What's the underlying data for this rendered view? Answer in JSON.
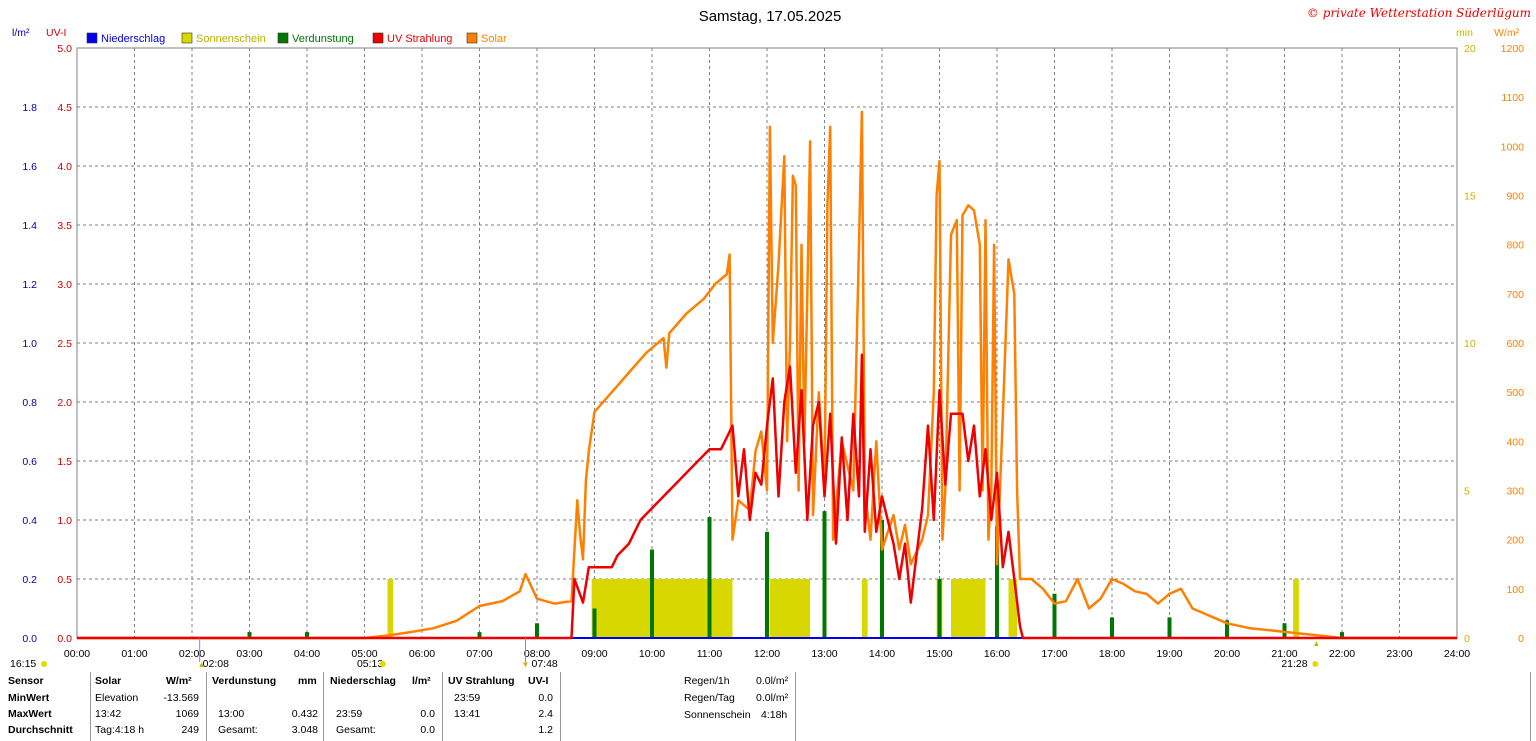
{
  "title": "Samstag, 17.05.2025",
  "copyright": "© private Wetterstation Süderlügum",
  "colors": {
    "niederschlag": "#0000ee",
    "sonnenschein": "#d8d800",
    "verdunstung": "#007700",
    "uv": "#ee0000",
    "solar": "#ff8000",
    "sonnenschein_axis": "#c8b400",
    "grid": "#808080"
  },
  "legend": [
    {
      "label": "Niederschlag",
      "color": "#0000ee"
    },
    {
      "label": "Sonnenschein",
      "color": "#d8d800"
    },
    {
      "label": "Verdunstung",
      "color": "#007700"
    },
    {
      "label": "UV Strahlung",
      "color": "#ee0000"
    },
    {
      "label": "Solar",
      "color": "#ff8000"
    }
  ],
  "chart_data": {
    "type": "line",
    "x_ticks": [
      "00:00",
      "01:00",
      "02:00",
      "03:00",
      "04:00",
      "05:00",
      "06:00",
      "07:00",
      "08:00",
      "09:00",
      "10:00",
      "11:00",
      "12:00",
      "13:00",
      "14:00",
      "15:00",
      "16:00",
      "17:00",
      "18:00",
      "19:00",
      "20:00",
      "21:00",
      "22:00",
      "23:00",
      "24:00"
    ],
    "axes": {
      "niederschlag": {
        "unit": "l/m²",
        "range": [
          0,
          2.0
        ],
        "ticks": [
          "0.0",
          "0.2",
          "0.4",
          "0.6",
          "0.8",
          "1.0",
          "1.2",
          "1.4",
          "1.6",
          "1.8"
        ]
      },
      "uv": {
        "unit": "UV-I",
        "range": [
          0,
          5.0
        ],
        "ticks": [
          "0.0",
          "0.5",
          "1.0",
          "1.5",
          "2.0",
          "2.5",
          "3.0",
          "3.5",
          "4.0",
          "4.5",
          "5.0"
        ]
      },
      "sonnenschein": {
        "unit": "min",
        "range": [
          0,
          20
        ],
        "ticks": [
          "0",
          "5",
          "10",
          "15",
          "20"
        ]
      },
      "solar": {
        "unit": "W/m²",
        "range": [
          0,
          1200
        ],
        "ticks": [
          "0",
          "100",
          "200",
          "300",
          "400",
          "500",
          "600",
          "700",
          "800",
          "900",
          "1000",
          "1100",
          "1200"
        ]
      }
    },
    "markers": {
      "left_time": "16:15",
      "moonrise": "02:08",
      "sunrise": "05:13",
      "moonset": "07:48",
      "sunset": "21:28"
    },
    "series": [
      {
        "name": "Solar",
        "unit": "W/m²",
        "points": [
          [
            0,
            0
          ],
          [
            5.0,
            0
          ],
          [
            5.4,
            5
          ],
          [
            5.8,
            12
          ],
          [
            6.2,
            20
          ],
          [
            6.6,
            35
          ],
          [
            7.0,
            65
          ],
          [
            7.4,
            75
          ],
          [
            7.7,
            95
          ],
          [
            7.8,
            130
          ],
          [
            8.0,
            80
          ],
          [
            8.3,
            70
          ],
          [
            8.6,
            75
          ],
          [
            8.7,
            280
          ],
          [
            8.75,
            210
          ],
          [
            8.8,
            160
          ],
          [
            8.85,
            320
          ],
          [
            8.9,
            380
          ],
          [
            9.0,
            460
          ],
          [
            9.3,
            500
          ],
          [
            9.6,
            540
          ],
          [
            9.9,
            580
          ],
          [
            10.2,
            610
          ],
          [
            10.25,
            550
          ],
          [
            10.3,
            620
          ],
          [
            10.6,
            660
          ],
          [
            10.9,
            690
          ],
          [
            11.1,
            720
          ],
          [
            11.3,
            740
          ],
          [
            11.35,
            780
          ],
          [
            11.4,
            200
          ],
          [
            11.5,
            280
          ],
          [
            11.7,
            260
          ],
          [
            11.8,
            380
          ],
          [
            11.9,
            420
          ],
          [
            12.0,
            300
          ],
          [
            12.05,
            1040
          ],
          [
            12.1,
            600
          ],
          [
            12.2,
            760
          ],
          [
            12.3,
            980
          ],
          [
            12.35,
            400
          ],
          [
            12.4,
            600
          ],
          [
            12.45,
            940
          ],
          [
            12.5,
            920
          ],
          [
            12.55,
            300
          ],
          [
            12.6,
            800
          ],
          [
            12.65,
            400
          ],
          [
            12.7,
            700
          ],
          [
            12.75,
            1010
          ],
          [
            12.8,
            250
          ],
          [
            12.9,
            500
          ],
          [
            13.0,
            300
          ],
          [
            13.05,
            880
          ],
          [
            13.1,
            1040
          ],
          [
            13.15,
            200
          ],
          [
            13.3,
            400
          ],
          [
            13.5,
            300
          ],
          [
            13.6,
            800
          ],
          [
            13.65,
            1070
          ],
          [
            13.7,
            300
          ],
          [
            13.8,
            200
          ],
          [
            13.9,
            400
          ],
          [
            14.0,
            180
          ],
          [
            14.2,
            250
          ],
          [
            14.3,
            180
          ],
          [
            14.4,
            230
          ],
          [
            14.5,
            150
          ],
          [
            14.7,
            200
          ],
          [
            14.8,
            250
          ],
          [
            14.9,
            500
          ],
          [
            14.95,
            900
          ],
          [
            15.0,
            970
          ],
          [
            15.05,
            200
          ],
          [
            15.1,
            300
          ],
          [
            15.2,
            820
          ],
          [
            15.3,
            850
          ],
          [
            15.35,
            300
          ],
          [
            15.4,
            860
          ],
          [
            15.5,
            880
          ],
          [
            15.6,
            870
          ],
          [
            15.7,
            800
          ],
          [
            15.75,
            300
          ],
          [
            15.8,
            850
          ],
          [
            15.85,
            200
          ],
          [
            15.9,
            300
          ],
          [
            15.95,
            800
          ],
          [
            16.0,
            150
          ],
          [
            16.1,
            450
          ],
          [
            16.2,
            770
          ],
          [
            16.3,
            700
          ],
          [
            16.35,
            300
          ],
          [
            16.4,
            120
          ],
          [
            16.6,
            120
          ],
          [
            16.8,
            100
          ],
          [
            17.0,
            70
          ],
          [
            17.2,
            75
          ],
          [
            17.4,
            120
          ],
          [
            17.6,
            60
          ],
          [
            17.8,
            80
          ],
          [
            18.0,
            120
          ],
          [
            18.2,
            110
          ],
          [
            18.4,
            95
          ],
          [
            18.6,
            90
          ],
          [
            18.8,
            70
          ],
          [
            19.0,
            90
          ],
          [
            19.2,
            100
          ],
          [
            19.4,
            60
          ],
          [
            19.6,
            50
          ],
          [
            19.8,
            40
          ],
          [
            20.0,
            30
          ],
          [
            20.4,
            20
          ],
          [
            20.8,
            15
          ],
          [
            21.2,
            10
          ],
          [
            21.6,
            5
          ],
          [
            22.0,
            0
          ],
          [
            24.0,
            0
          ]
        ]
      },
      {
        "name": "UV Strahlung",
        "unit": "UV-I",
        "points": [
          [
            0,
            0
          ],
          [
            8.6,
            0
          ],
          [
            8.65,
            0.5
          ],
          [
            8.8,
            0.3
          ],
          [
            8.9,
            0.6
          ],
          [
            9.3,
            0.6
          ],
          [
            9.4,
            0.7
          ],
          [
            9.6,
            0.8
          ],
          [
            9.7,
            0.9
          ],
          [
            9.8,
            1.0
          ],
          [
            10.0,
            1.1
          ],
          [
            10.2,
            1.2
          ],
          [
            10.4,
            1.3
          ],
          [
            10.6,
            1.4
          ],
          [
            10.8,
            1.5
          ],
          [
            11.0,
            1.6
          ],
          [
            11.2,
            1.6
          ],
          [
            11.3,
            1.7
          ],
          [
            11.4,
            1.8
          ],
          [
            11.5,
            1.2
          ],
          [
            11.6,
            1.6
          ],
          [
            11.7,
            1.0
          ],
          [
            11.8,
            1.4
          ],
          [
            11.9,
            1.3
          ],
          [
            12.0,
            1.8
          ],
          [
            12.1,
            2.2
          ],
          [
            12.2,
            1.2
          ],
          [
            12.3,
            2.0
          ],
          [
            12.4,
            2.3
          ],
          [
            12.5,
            1.4
          ],
          [
            12.6,
            2.1
          ],
          [
            12.7,
            1.0
          ],
          [
            12.8,
            1.8
          ],
          [
            12.9,
            2.0
          ],
          [
            13.0,
            1.2
          ],
          [
            13.1,
            1.9
          ],
          [
            13.2,
            0.8
          ],
          [
            13.3,
            1.7
          ],
          [
            13.4,
            1.0
          ],
          [
            13.5,
            1.9
          ],
          [
            13.6,
            1.2
          ],
          [
            13.65,
            2.4
          ],
          [
            13.7,
            0.9
          ],
          [
            13.8,
            1.6
          ],
          [
            13.9,
            0.9
          ],
          [
            14.0,
            1.2
          ],
          [
            14.2,
            0.8
          ],
          [
            14.3,
            0.5
          ],
          [
            14.4,
            0.8
          ],
          [
            14.5,
            0.3
          ],
          [
            14.6,
            0.7
          ],
          [
            14.7,
            1.1
          ],
          [
            14.8,
            1.8
          ],
          [
            14.9,
            1.0
          ],
          [
            15.0,
            2.1
          ],
          [
            15.1,
            1.3
          ],
          [
            15.2,
            1.9
          ],
          [
            15.4,
            1.9
          ],
          [
            15.5,
            1.5
          ],
          [
            15.6,
            1.8
          ],
          [
            15.7,
            1.2
          ],
          [
            15.8,
            1.6
          ],
          [
            15.9,
            1.0
          ],
          [
            16.0,
            1.4
          ],
          [
            16.1,
            0.6
          ],
          [
            16.2,
            0.9
          ],
          [
            16.3,
            0.5
          ],
          [
            16.4,
            0.1
          ],
          [
            16.45,
            0
          ],
          [
            24.0,
            0
          ]
        ]
      },
      {
        "name": "Verdunstung",
        "unit": "mm",
        "bars": [
          [
            3.0,
            0.02
          ],
          [
            4.0,
            0.02
          ],
          [
            7.0,
            0.02
          ],
          [
            8.0,
            0.05
          ],
          [
            9.0,
            0.1
          ],
          [
            10.0,
            0.3
          ],
          [
            11.0,
            0.41
          ],
          [
            12.0,
            0.36
          ],
          [
            13.0,
            0.43
          ],
          [
            14.0,
            0.4
          ],
          [
            15.0,
            0.2
          ],
          [
            16.0,
            0.38
          ],
          [
            17.0,
            0.15
          ],
          [
            18.0,
            0.07
          ],
          [
            19.0,
            0.07
          ],
          [
            20.0,
            0.06
          ],
          [
            21.0,
            0.05
          ],
          [
            22.0,
            0.02
          ]
        ]
      },
      {
        "name": "Sonnenschein",
        "unit": "min",
        "bars": [
          [
            5.45,
            2
          ],
          [
            9.0,
            2
          ],
          [
            10.0,
            2
          ],
          [
            11.0,
            2
          ],
          [
            12.0,
            2
          ],
          [
            12.5,
            2
          ],
          [
            13.7,
            2
          ],
          [
            15.0,
            2
          ],
          [
            15.5,
            2
          ],
          [
            16.2,
            2
          ],
          [
            21.2,
            2
          ]
        ],
        "ranges": [
          [
            5.4,
            5.5
          ],
          [
            8.95,
            11.4
          ],
          [
            12.05,
            12.75
          ],
          [
            13.65,
            13.75
          ],
          [
            14.95,
            15.05
          ],
          [
            15.2,
            15.8
          ],
          [
            16.2,
            16.35
          ],
          [
            21.15,
            21.25
          ]
        ]
      },
      {
        "name": "Niederschlag",
        "unit": "l/m²",
        "points": [
          [
            0,
            0
          ],
          [
            24,
            0
          ]
        ]
      }
    ]
  },
  "stats": {
    "header": {
      "sensor": "Sensor",
      "solar": "Solar",
      "solar_unit": "W/m²",
      "verd": "Verdunstung",
      "verd_unit": "mm",
      "nied": "Niederschlag",
      "nied_unit": "l/m²",
      "uv": "UV Strahlung",
      "uv_unit": "UV-I"
    },
    "rows": [
      {
        "label": "MinWert",
        "solar_a": "Elevation",
        "solar_b": "-13.569",
        "verd_a": "",
        "verd_b": "",
        "nied_a": "",
        "nied_b": "",
        "uv_a": "23:59",
        "uv_b": "0.0"
      },
      {
        "label": "MaxWert",
        "solar_a": "13:42",
        "solar_b": "1069",
        "verd_a": "13:00",
        "verd_b": "0.432",
        "nied_a": "23:59",
        "nied_b": "0.0",
        "uv_a": "13:41",
        "uv_b": "2.4"
      },
      {
        "label": "Durchschnitt",
        "solar_a": "Tag:4:18 h",
        "solar_b": "249",
        "verd_a": "Gesamt:",
        "verd_b": "3.048",
        "nied_a": "Gesamt:",
        "nied_b": "0.0",
        "uv_a": "",
        "uv_b": "1.2"
      }
    ],
    "extra": [
      {
        "label": "Regen/1h",
        "value": "0.0l/m²"
      },
      {
        "label": "Regen/Tag",
        "value": "0.0l/m²"
      },
      {
        "label": "Sonnenschein",
        "value": "4:18h"
      }
    ]
  }
}
